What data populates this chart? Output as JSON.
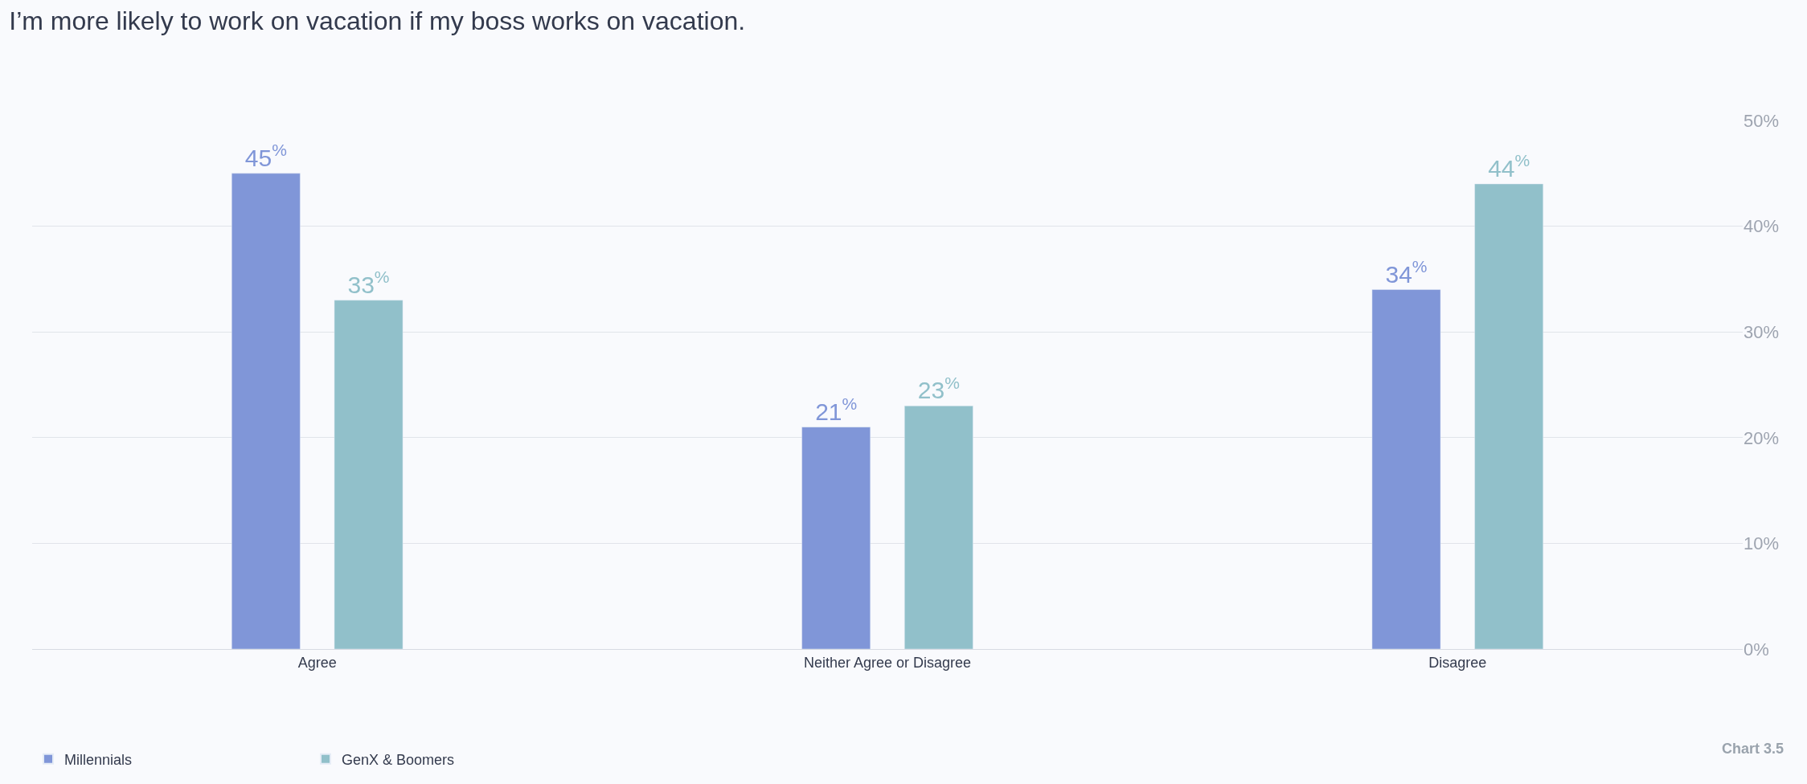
{
  "chart_data": {
    "type": "bar",
    "title": "I’m more likely to work on vacation if my boss works on vacation.",
    "categories": [
      "Agree",
      "Neither Agree or Disagree",
      "Disagree"
    ],
    "series": [
      {
        "name": "Millennials",
        "color": "#8096d8",
        "values": [
          45,
          21,
          34
        ],
        "value_labels": [
          "45$^{%}$",
          "21$^{%}$",
          "34$^{%}$"
        ]
      },
      {
        "name": "GenX & Boomers",
        "color": "#91c0ca",
        "values": [
          33,
          23,
          44
        ],
        "value_labels": [
          "33$^{%}$",
          "23$^{%}$",
          "44$^{%}$"
        ]
      }
    ],
    "ylim": [
      0,
      50
    ],
    "yticks": [
      {
        "value": 0,
        "label": "0%"
      },
      {
        "value": 10,
        "label": "10%"
      },
      {
        "value": 20,
        "label": "20%"
      },
      {
        "value": 30,
        "label": "30%"
      },
      {
        "value": 40,
        "label": "40%"
      },
      {
        "value": 50,
        "label": "50%"
      }
    ],
    "grid": "y",
    "legend": "bottom left",
    "annotations": [
      "Chart 3.5"
    ]
  }
}
